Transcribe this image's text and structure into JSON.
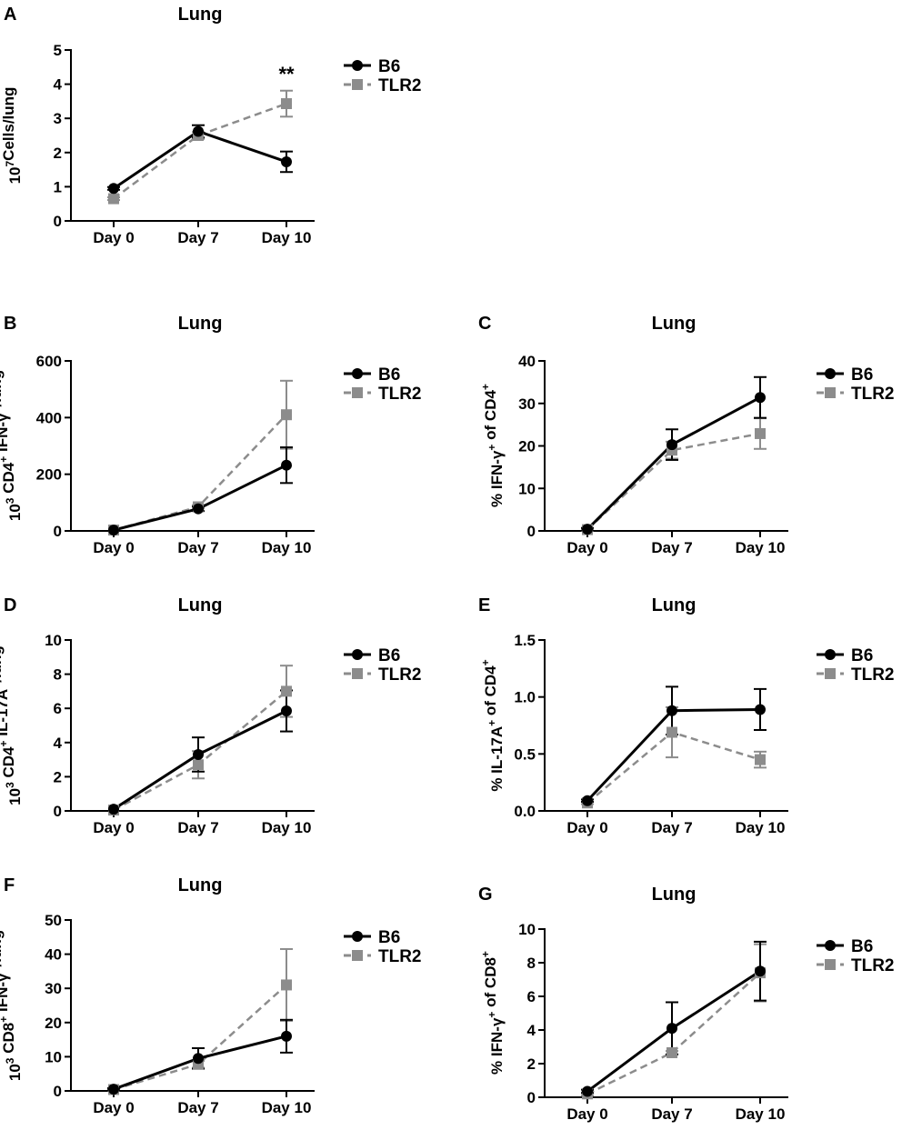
{
  "chart_data": [
    {
      "panel": "A",
      "type": "line",
      "title": "Lung",
      "categories": [
        "Day 0",
        "Day 7",
        "Day 10"
      ],
      "ylabel_parts": [
        [
          "10",
          ""
        ],
        [
          "7",
          "sup"
        ],
        [
          "Cells/lung",
          ""
        ]
      ],
      "ylim": [
        0,
        5
      ],
      "yticks": [
        "0",
        "1",
        "2",
        "3",
        "4",
        "5"
      ],
      "series": [
        {
          "name": "B6",
          "values": [
            0.95,
            2.62,
            1.73
          ],
          "errors": [
            0.04,
            0.18,
            0.3
          ]
        },
        {
          "name": "TLR2",
          "values": [
            0.65,
            2.5,
            3.43
          ],
          "errors": [
            0.04,
            0.1,
            0.38
          ]
        }
      ],
      "annotations": [
        {
          "text": "**",
          "category": "Day 10",
          "y": 4.1
        }
      ]
    },
    {
      "panel": "B",
      "type": "line",
      "title": "Lung",
      "categories": [
        "Day 0",
        "Day 7",
        "Day 10"
      ],
      "ylabel_parts": [
        [
          "10",
          ""
        ],
        [
          "3",
          "sup"
        ],
        [
          " CD4",
          ""
        ],
        [
          "+",
          "sup"
        ],
        [
          " IFN-γ",
          ""
        ],
        [
          "+",
          "sup"
        ],
        [
          "/lung",
          ""
        ]
      ],
      "ylim": [
        0,
        600
      ],
      "yticks": [
        "0",
        "200",
        "400",
        "600"
      ],
      "series": [
        {
          "name": "B6",
          "values": [
            3,
            78,
            232
          ],
          "errors": [
            2,
            8,
            63
          ]
        },
        {
          "name": "TLR2",
          "values": [
            3,
            85,
            410
          ],
          "errors": [
            2,
            6,
            120
          ]
        }
      ],
      "annotations": []
    },
    {
      "panel": "C",
      "type": "line",
      "title": "Lung",
      "categories": [
        "Day 0",
        "Day 7",
        "Day 10"
      ],
      "ylabel_parts": [
        [
          "% IFN-γ",
          ""
        ],
        [
          "+",
          "sup"
        ],
        [
          " of CD4",
          ""
        ],
        [
          "+",
          "sup"
        ]
      ],
      "ylim": [
        0,
        40
      ],
      "yticks": [
        "0",
        "10",
        "20",
        "30",
        "40"
      ],
      "series": [
        {
          "name": "B6",
          "values": [
            0.4,
            20.3,
            31.4
          ],
          "errors": [
            0.3,
            3.6,
            4.8
          ]
        },
        {
          "name": "TLR2",
          "values": [
            0.3,
            19.0,
            22.9
          ],
          "errors": [
            0.3,
            2.0,
            3.6
          ]
        }
      ],
      "annotations": []
    },
    {
      "panel": "D",
      "type": "line",
      "title": "Lung",
      "categories": [
        "Day 0",
        "Day 7",
        "Day 10"
      ],
      "ylabel_parts": [
        [
          "10",
          ""
        ],
        [
          "3",
          "sup"
        ],
        [
          " CD4",
          ""
        ],
        [
          "+",
          "sup"
        ],
        [
          " IL-17A",
          ""
        ],
        [
          "+",
          "sup"
        ],
        [
          "/lung",
          ""
        ]
      ],
      "ylim": [
        0,
        10
      ],
      "yticks": [
        "0",
        "2",
        "4",
        "6",
        "8",
        "10"
      ],
      "series": [
        {
          "name": "B6",
          "values": [
            0.1,
            3.3,
            5.85
          ],
          "errors": [
            0.05,
            1.0,
            1.2
          ]
        },
        {
          "name": "TLR2",
          "values": [
            0.05,
            2.7,
            7.0
          ],
          "errors": [
            0.05,
            0.8,
            1.5
          ]
        }
      ],
      "annotations": []
    },
    {
      "panel": "E",
      "type": "line",
      "title": "Lung",
      "categories": [
        "Day 0",
        "Day 7",
        "Day 10"
      ],
      "ylabel_parts": [
        [
          "% IL-17A",
          ""
        ],
        [
          "+",
          "sup"
        ],
        [
          " of CD4",
          ""
        ],
        [
          "+",
          "sup"
        ]
      ],
      "ylim": [
        0,
        1.5
      ],
      "yticks": [
        "0.0",
        "0.5",
        "1.0",
        "1.5"
      ],
      "series": [
        {
          "name": "B6",
          "values": [
            0.09,
            0.88,
            0.89
          ],
          "errors": [
            0.01,
            0.21,
            0.18
          ]
        },
        {
          "name": "TLR2",
          "values": [
            0.07,
            0.69,
            0.45
          ],
          "errors": [
            0.01,
            0.22,
            0.07
          ]
        }
      ],
      "annotations": []
    },
    {
      "panel": "F",
      "type": "line",
      "title": "Lung",
      "categories": [
        "Day 0",
        "Day 7",
        "Day 10"
      ],
      "ylabel_parts": [
        [
          "10",
          ""
        ],
        [
          "3",
          "sup"
        ],
        [
          " CD8",
          ""
        ],
        [
          "+",
          "sup"
        ],
        [
          " IFN-γ",
          ""
        ],
        [
          "+",
          "sup"
        ],
        [
          "/lung",
          ""
        ]
      ],
      "ylim": [
        0,
        50
      ],
      "yticks": [
        "0",
        "10",
        "20",
        "30",
        "40",
        "50"
      ],
      "series": [
        {
          "name": "B6",
          "values": [
            0.5,
            9.5,
            16.0
          ],
          "errors": [
            0.3,
            3.0,
            4.8
          ]
        },
        {
          "name": "TLR2",
          "values": [
            0.4,
            7.8,
            31.0
          ],
          "errors": [
            0.3,
            1.0,
            10.5
          ]
        }
      ],
      "annotations": []
    },
    {
      "panel": "G",
      "type": "line",
      "title": "Lung",
      "categories": [
        "Day 0",
        "Day 7",
        "Day 10"
      ],
      "ylabel_parts": [
        [
          "% IFN-γ",
          ""
        ],
        [
          "+",
          "sup"
        ],
        [
          " of CD8",
          ""
        ],
        [
          "+",
          "sup"
        ]
      ],
      "ylim": [
        0,
        10
      ],
      "yticks": [
        "0",
        "2",
        "4",
        "6",
        "8",
        "10"
      ],
      "series": [
        {
          "name": "B6",
          "values": [
            0.35,
            4.1,
            7.5
          ],
          "errors": [
            0.1,
            1.55,
            1.75
          ]
        },
        {
          "name": "TLR2",
          "values": [
            0.2,
            2.65,
            7.4
          ],
          "errors": [
            0.1,
            0.1,
            1.7
          ]
        }
      ],
      "annotations": []
    }
  ],
  "colors": {
    "B6": "#000000",
    "TLR2": "#8c8c8c",
    "axis": "#000000"
  }
}
